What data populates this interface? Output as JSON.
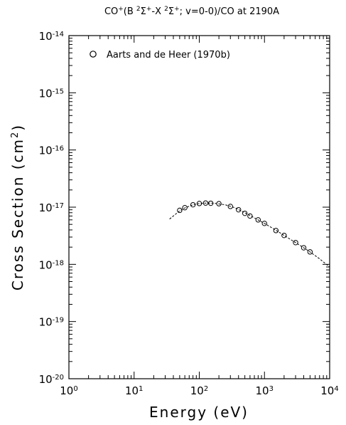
{
  "chart_data": {
    "type": "scatter",
    "title": "CO⁺(B ²Σ⁺-X ²Σ⁺; v=0-0)/CO at 2190A",
    "title_parts": {
      "species": "CO",
      "band_open": "(B ",
      "upper": "Σ",
      "dash": "-X ",
      "lower": "Σ",
      "tail": "; v=0-0)/CO at 2190A",
      "sup_plus": "+",
      "sup_two": "2"
    },
    "xlabel": "Energy (eV)",
    "ylabel_main": "Cross Section (cm",
    "ylabel_sup": "2",
    "ylabel_close": ")",
    "xscale": "log",
    "yscale": "log",
    "xlim": [
      1,
      10000
    ],
    "ylim": [
      1e-20,
      1e-14
    ],
    "x_ticks": [
      {
        "value": 1,
        "base": "10",
        "exp": "0"
      },
      {
        "value": 10,
        "base": "10",
        "exp": "1"
      },
      {
        "value": 100,
        "base": "10",
        "exp": "2"
      },
      {
        "value": 1000,
        "base": "10",
        "exp": "3"
      },
      {
        "value": 10000,
        "base": "10",
        "exp": "4"
      }
    ],
    "y_ticks": [
      {
        "value": 1e-20,
        "base": "10",
        "exp": "-20"
      },
      {
        "value": 1e-19,
        "base": "10",
        "exp": "-19"
      },
      {
        "value": 1e-18,
        "base": "10",
        "exp": "-18"
      },
      {
        "value": 1e-17,
        "base": "10",
        "exp": "-17"
      },
      {
        "value": 1e-16,
        "base": "10",
        "exp": "-16"
      },
      {
        "value": 1e-15,
        "base": "10",
        "exp": "-15"
      },
      {
        "value": 1e-14,
        "base": "10",
        "exp": "-14"
      }
    ],
    "grid": false,
    "legend_position": "top-left",
    "series": [
      {
        "name": "Aarts and de Heer (1970b)",
        "marker": "circle",
        "points": [
          [
            50,
            8.8e-18
          ],
          [
            60,
            9.8e-18
          ],
          [
            80,
            1.1e-17
          ],
          [
            100,
            1.16e-17
          ],
          [
            125,
            1.18e-17
          ],
          [
            150,
            1.17e-17
          ],
          [
            200,
            1.15e-17
          ],
          [
            300,
            1.03e-17
          ],
          [
            400,
            9e-18
          ],
          [
            500,
            7.8e-18
          ],
          [
            600,
            7e-18
          ],
          [
            800,
            6e-18
          ],
          [
            1000,
            5.2e-18
          ],
          [
            1500,
            3.9e-18
          ],
          [
            2000,
            3.2e-18
          ],
          [
            3000,
            2.4e-18
          ],
          [
            4000,
            1.95e-18
          ],
          [
            5000,
            1.65e-18
          ]
        ]
      },
      {
        "marker": "none",
        "line": "dashed",
        "points": [
          [
            35,
            6.2e-18
          ],
          [
            50,
            8.6e-18
          ],
          [
            60,
            9.7e-18
          ],
          [
            80,
            1.1e-17
          ],
          [
            100,
            1.16e-17
          ],
          [
            130,
            1.18e-17
          ],
          [
            170,
            1.17e-17
          ],
          [
            250,
            1.1e-17
          ],
          [
            350,
            9.8e-18
          ],
          [
            500,
            8e-18
          ],
          [
            700,
            6.5e-18
          ],
          [
            1000,
            5.2e-18
          ],
          [
            1500,
            3.95e-18
          ],
          [
            2000,
            3.2e-18
          ],
          [
            3000,
            2.4e-18
          ],
          [
            4000,
            1.95e-18
          ],
          [
            5000,
            1.65e-18
          ],
          [
            7000,
            1.25e-18
          ],
          [
            10000,
            9e-19
          ]
        ]
      }
    ]
  }
}
